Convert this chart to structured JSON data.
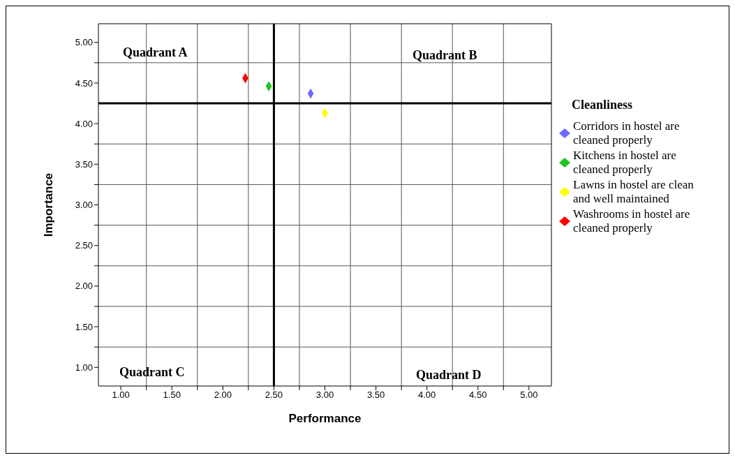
{
  "chart_data": {
    "type": "scatter",
    "xlabel": "Performance",
    "ylabel": "Importance",
    "legend_title": "Cleanliness",
    "xlim": [
      0.78,
      5.22
    ],
    "ylim": [
      0.77,
      5.23
    ],
    "xticks": [
      {
        "value": 1,
        "label": "1.00"
      },
      {
        "value": 1.25,
        "label": null
      },
      {
        "value": 1.5,
        "label": "1.50"
      },
      {
        "value": 1.75,
        "label": null
      },
      {
        "value": 2,
        "label": "2.00"
      },
      {
        "value": 2.25,
        "label": null
      },
      {
        "value": 2.5,
        "label": "2.50"
      },
      {
        "value": 2.75,
        "label": null
      },
      {
        "value": 3,
        "label": "3.00"
      },
      {
        "value": 3.25,
        "label": null
      },
      {
        "value": 3.5,
        "label": "3.50"
      },
      {
        "value": 3.75,
        "label": null
      },
      {
        "value": 4,
        "label": "4.00"
      },
      {
        "value": 4.25,
        "label": null
      },
      {
        "value": 4.5,
        "label": "4.50"
      },
      {
        "value": 4.75,
        "label": null
      },
      {
        "value": 5,
        "label": "5.00"
      }
    ],
    "yticks": [
      {
        "value": 1,
        "label": "1.00"
      },
      {
        "value": 1.25,
        "label": null
      },
      {
        "value": 1.5,
        "label": "1.50"
      },
      {
        "value": 1.75,
        "label": null
      },
      {
        "value": 2,
        "label": "2.00"
      },
      {
        "value": 2.25,
        "label": null
      },
      {
        "value": 2.5,
        "label": "2.50"
      },
      {
        "value": 2.75,
        "label": null
      },
      {
        "value": 3,
        "label": "3.00"
      },
      {
        "value": 3.25,
        "label": null
      },
      {
        "value": 3.5,
        "label": "3.50"
      },
      {
        "value": 3.75,
        "label": null
      },
      {
        "value": 4,
        "label": "4.00"
      },
      {
        "value": 4.5,
        "label": "4.50"
      },
      {
        "value": 4.75,
        "label": null
      },
      {
        "value": 5,
        "label": "5.00"
      }
    ],
    "grid": true,
    "legend": "right",
    "marker": "diamond",
    "ref_lines": [
      {
        "axis": "x",
        "value": 2.5,
        "color": "#000000"
      },
      {
        "axis": "y",
        "value": 4.25,
        "color": "#000000"
      }
    ],
    "annotations": [
      "Quadrant A",
      "Quadrant B",
      "Quadrant C",
      "Quadrant D"
    ],
    "series": [
      {
        "name": "Corridors in hostel are cleaned properly",
        "color": "#6b6bff",
        "x": [
          2.86
        ],
        "values": [
          4.37
        ]
      },
      {
        "name": "Kitchens in hostel are cleaned properly",
        "color": "#1fc41f",
        "x": [
          2.45
        ],
        "values": [
          4.46
        ]
      },
      {
        "name": "Lawns in hostel are clean and well maintained",
        "color": "#ffff00",
        "x": [
          3.0
        ],
        "values": [
          4.13
        ]
      },
      {
        "name": "Washrooms in hostel are cleaned properly",
        "color": "#ff0000",
        "x": [
          2.22
        ],
        "values": [
          4.56
        ]
      }
    ]
  }
}
